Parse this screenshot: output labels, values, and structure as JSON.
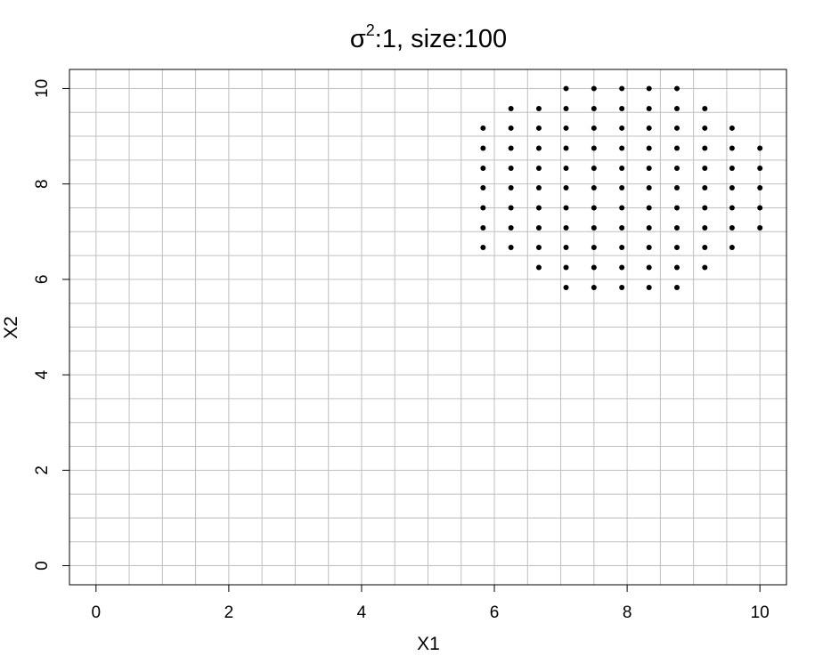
{
  "chart_data": {
    "type": "scatter",
    "title": {
      "symbol": "σ",
      "superscript": "2",
      "rest": ":1, size:100"
    },
    "xlabel": "X1",
    "ylabel": "X2",
    "xlim": [
      -0.4,
      10.4
    ],
    "ylim": [
      -0.4,
      10.4
    ],
    "x_ticks": [
      0,
      2,
      4,
      6,
      8,
      10
    ],
    "y_ticks": [
      0,
      2,
      4,
      6,
      8,
      10
    ],
    "x_tick_labels": [
      "0",
      "2",
      "4",
      "6",
      "8",
      "10"
    ],
    "y_tick_labels": [
      "0",
      "2",
      "4",
      "6",
      "8",
      "10"
    ],
    "grid": true,
    "grid_step": 0.5,
    "grid_color": "#bfbfbf",
    "point_color": "#000000",
    "points": [
      [
        7.08,
        10.0
      ],
      [
        7.5,
        10.0
      ],
      [
        7.92,
        10.0
      ],
      [
        8.33,
        10.0
      ],
      [
        8.75,
        10.0
      ],
      [
        6.25,
        9.58
      ],
      [
        6.67,
        9.58
      ],
      [
        7.08,
        9.58
      ],
      [
        7.5,
        9.58
      ],
      [
        7.92,
        9.58
      ],
      [
        8.33,
        9.58
      ],
      [
        8.75,
        9.58
      ],
      [
        9.17,
        9.58
      ],
      [
        5.83,
        9.17
      ],
      [
        6.25,
        9.17
      ],
      [
        6.67,
        9.17
      ],
      [
        7.08,
        9.17
      ],
      [
        7.5,
        9.17
      ],
      [
        7.92,
        9.17
      ],
      [
        8.33,
        9.17
      ],
      [
        8.75,
        9.17
      ],
      [
        9.17,
        9.17
      ],
      [
        9.58,
        9.17
      ],
      [
        5.83,
        8.75
      ],
      [
        6.25,
        8.75
      ],
      [
        6.67,
        8.75
      ],
      [
        7.08,
        8.75
      ],
      [
        7.5,
        8.75
      ],
      [
        7.92,
        8.75
      ],
      [
        8.33,
        8.75
      ],
      [
        8.75,
        8.75
      ],
      [
        9.17,
        8.75
      ],
      [
        9.58,
        8.75
      ],
      [
        10.0,
        8.75
      ],
      [
        5.83,
        8.33
      ],
      [
        6.25,
        8.33
      ],
      [
        6.67,
        8.33
      ],
      [
        7.08,
        8.33
      ],
      [
        7.5,
        8.33
      ],
      [
        7.92,
        8.33
      ],
      [
        8.33,
        8.33
      ],
      [
        8.75,
        8.33
      ],
      [
        9.17,
        8.33
      ],
      [
        9.58,
        8.33
      ],
      [
        10.0,
        8.33
      ],
      [
        5.83,
        7.92
      ],
      [
        6.25,
        7.92
      ],
      [
        6.67,
        7.92
      ],
      [
        7.08,
        7.92
      ],
      [
        7.5,
        7.92
      ],
      [
        7.92,
        7.92
      ],
      [
        8.33,
        7.92
      ],
      [
        8.75,
        7.92
      ],
      [
        9.17,
        7.92
      ],
      [
        9.58,
        7.92
      ],
      [
        10.0,
        7.92
      ],
      [
        5.83,
        7.5
      ],
      [
        6.25,
        7.5
      ],
      [
        6.67,
        7.5
      ],
      [
        7.08,
        7.5
      ],
      [
        7.5,
        7.5
      ],
      [
        7.92,
        7.5
      ],
      [
        8.33,
        7.5
      ],
      [
        8.75,
        7.5
      ],
      [
        9.17,
        7.5
      ],
      [
        9.58,
        7.5
      ],
      [
        10.0,
        7.5
      ],
      [
        5.83,
        7.08
      ],
      [
        6.25,
        7.08
      ],
      [
        6.67,
        7.08
      ],
      [
        7.08,
        7.08
      ],
      [
        7.5,
        7.08
      ],
      [
        7.92,
        7.08
      ],
      [
        8.33,
        7.08
      ],
      [
        8.75,
        7.08
      ],
      [
        9.17,
        7.08
      ],
      [
        9.58,
        7.08
      ],
      [
        10.0,
        7.08
      ],
      [
        5.83,
        6.67
      ],
      [
        6.25,
        6.67
      ],
      [
        6.67,
        6.67
      ],
      [
        7.08,
        6.67
      ],
      [
        7.5,
        6.67
      ],
      [
        7.92,
        6.67
      ],
      [
        8.33,
        6.67
      ],
      [
        8.75,
        6.67
      ],
      [
        9.17,
        6.67
      ],
      [
        9.58,
        6.67
      ],
      [
        6.67,
        6.25
      ],
      [
        7.08,
        6.25
      ],
      [
        7.5,
        6.25
      ],
      [
        7.92,
        6.25
      ],
      [
        8.33,
        6.25
      ],
      [
        8.75,
        6.25
      ],
      [
        9.17,
        6.25
      ],
      [
        7.08,
        5.83
      ],
      [
        7.5,
        5.83
      ],
      [
        7.92,
        5.83
      ],
      [
        8.33,
        5.83
      ],
      [
        8.75,
        5.83
      ]
    ]
  }
}
